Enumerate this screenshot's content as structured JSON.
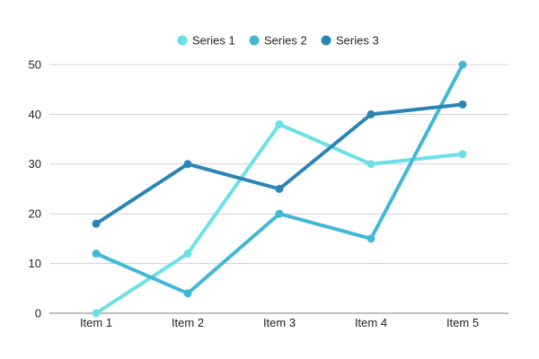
{
  "chart_data": {
    "type": "line",
    "categories": [
      "Item 1",
      "Item 2",
      "Item 3",
      "Item 4",
      "Item 5"
    ],
    "series": [
      {
        "name": "Series 1",
        "values": [
          0,
          12,
          38,
          30,
          32
        ],
        "color": "#6be0e6"
      },
      {
        "name": "Series 2",
        "values": [
          12,
          4,
          20,
          15,
          50
        ],
        "color": "#43b7d6"
      },
      {
        "name": "Series 3",
        "values": [
          18,
          30,
          25,
          40,
          42
        ],
        "color": "#2a85b5"
      }
    ],
    "ylim": [
      0,
      50
    ],
    "yticks": [
      0,
      10,
      20,
      30,
      40,
      50
    ],
    "grid": true,
    "legend_position": "top-center",
    "title": "",
    "xlabel": "",
    "ylabel": ""
  }
}
